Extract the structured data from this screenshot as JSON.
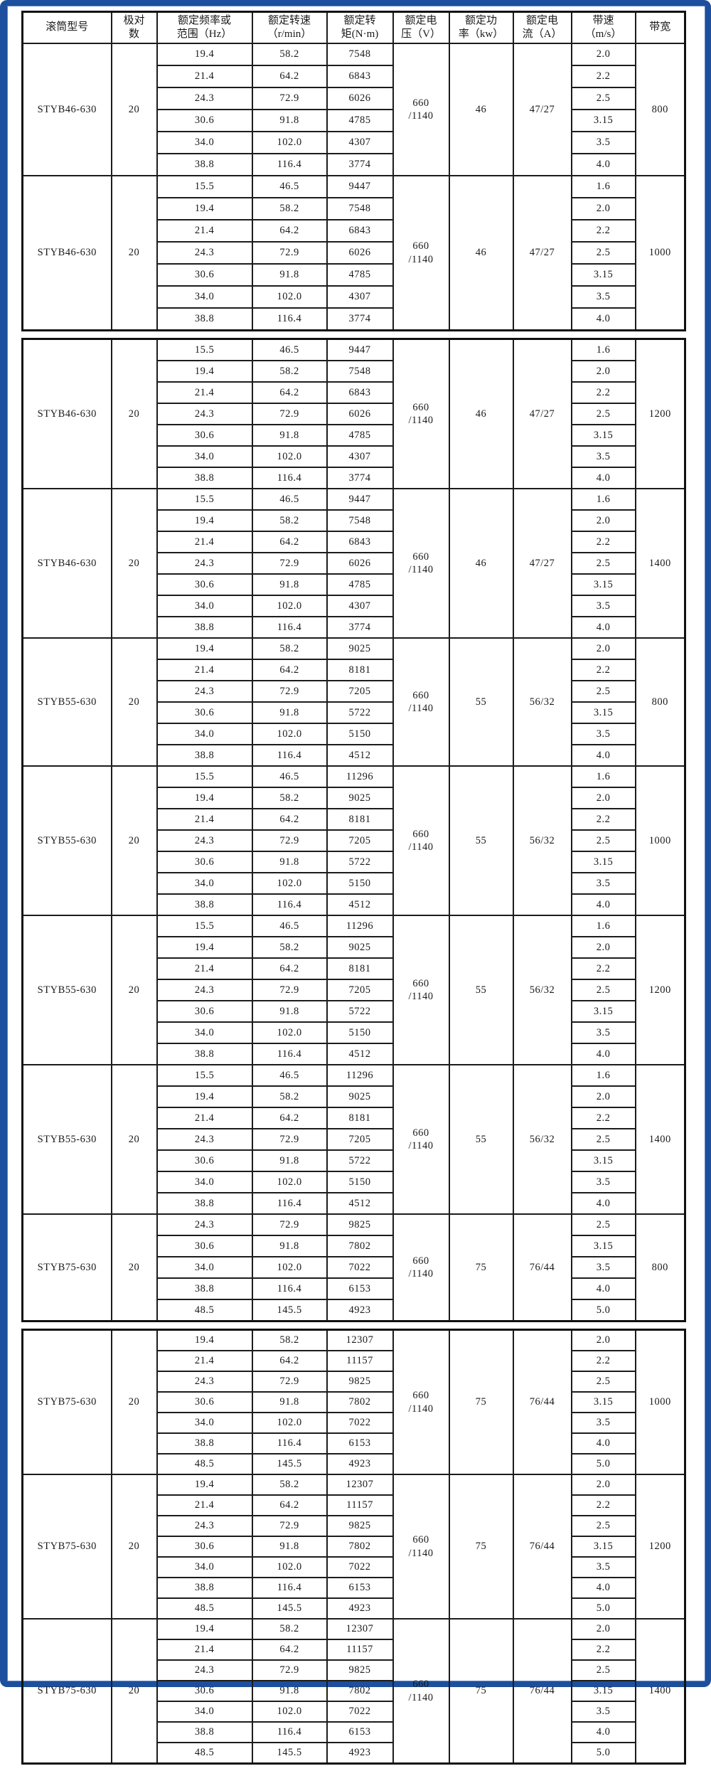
{
  "frame": {
    "color": "#1d4f9e"
  },
  "header": {
    "model": "滚筒型号",
    "poles": "极对\n数",
    "freq": "额定频率或\n范围（Hz）",
    "rpm": "额定转速\n（r/min）",
    "torque": "额定转\n矩(N·m)",
    "voltage": "额定电\n压（V）",
    "power": "额定功\n率（kw）",
    "current": "额定电\n流（A）",
    "belt_speed": "带速\n（m/s）",
    "belt_width": "带宽"
  },
  "sections": [
    {
      "has_header": true,
      "blocks": [
        {
          "model": "STYB46-630",
          "poles": "20",
          "voltage": "660\n/1140",
          "power": "46",
          "current": "47/27",
          "belt_width": "800",
          "rows": [
            {
              "freq": "19.4",
              "rpm": "58.2",
              "torque": "7548",
              "belt_speed": "2.0"
            },
            {
              "freq": "21.4",
              "rpm": "64.2",
              "torque": "6843",
              "belt_speed": "2.2"
            },
            {
              "freq": "24.3",
              "rpm": "72.9",
              "torque": "6026",
              "belt_speed": "2.5"
            },
            {
              "freq": "30.6",
              "rpm": "91.8",
              "torque": "4785",
              "belt_speed": "3.15"
            },
            {
              "freq": "34.0",
              "rpm": "102.0",
              "torque": "4307",
              "belt_speed": "3.5"
            },
            {
              "freq": "38.8",
              "rpm": "116.4",
              "torque": "3774",
              "belt_speed": "4.0"
            }
          ]
        },
        {
          "model": "STYB46-630",
          "poles": "20",
          "voltage": "660\n/1140",
          "power": "46",
          "current": "47/27",
          "belt_width": "1000",
          "rows": [
            {
              "freq": "15.5",
              "rpm": "46.5",
              "torque": "9447",
              "belt_speed": "1.6"
            },
            {
              "freq": "19.4",
              "rpm": "58.2",
              "torque": "7548",
              "belt_speed": "2.0"
            },
            {
              "freq": "21.4",
              "rpm": "64.2",
              "torque": "6843",
              "belt_speed": "2.2"
            },
            {
              "freq": "24.3",
              "rpm": "72.9",
              "torque": "6026",
              "belt_speed": "2.5"
            },
            {
              "freq": "30.6",
              "rpm": "91.8",
              "torque": "4785",
              "belt_speed": "3.15"
            },
            {
              "freq": "34.0",
              "rpm": "102.0",
              "torque": "4307",
              "belt_speed": "3.5"
            },
            {
              "freq": "38.8",
              "rpm": "116.4",
              "torque": "3774",
              "belt_speed": "4.0"
            }
          ]
        }
      ]
    },
    {
      "has_header": false,
      "blocks": [
        {
          "model": "STYB46-630",
          "poles": "20",
          "voltage": "660\n/1140",
          "power": "46",
          "current": "47/27",
          "belt_width": "1200",
          "rows": [
            {
              "freq": "15.5",
              "rpm": "46.5",
              "torque": "9447",
              "belt_speed": "1.6"
            },
            {
              "freq": "19.4",
              "rpm": "58.2",
              "torque": "7548",
              "belt_speed": "2.0"
            },
            {
              "freq": "21.4",
              "rpm": "64.2",
              "torque": "6843",
              "belt_speed": "2.2"
            },
            {
              "freq": "24.3",
              "rpm": "72.9",
              "torque": "6026",
              "belt_speed": "2.5"
            },
            {
              "freq": "30.6",
              "rpm": "91.8",
              "torque": "4785",
              "belt_speed": "3.15"
            },
            {
              "freq": "34.0",
              "rpm": "102.0",
              "torque": "4307",
              "belt_speed": "3.5"
            },
            {
              "freq": "38.8",
              "rpm": "116.4",
              "torque": "3774",
              "belt_speed": "4.0"
            }
          ]
        },
        {
          "model": "STYB46-630",
          "poles": "20",
          "voltage": "660\n/1140",
          "power": "46",
          "current": "47/27",
          "belt_width": "1400",
          "rows": [
            {
              "freq": "15.5",
              "rpm": "46.5",
              "torque": "9447",
              "belt_speed": "1.6"
            },
            {
              "freq": "19.4",
              "rpm": "58.2",
              "torque": "7548",
              "belt_speed": "2.0"
            },
            {
              "freq": "21.4",
              "rpm": "64.2",
              "torque": "6843",
              "belt_speed": "2.2"
            },
            {
              "freq": "24.3",
              "rpm": "72.9",
              "torque": "6026",
              "belt_speed": "2.5"
            },
            {
              "freq": "30.6",
              "rpm": "91.8",
              "torque": "4785",
              "belt_speed": "3.15"
            },
            {
              "freq": "34.0",
              "rpm": "102.0",
              "torque": "4307",
              "belt_speed": "3.5"
            },
            {
              "freq": "38.8",
              "rpm": "116.4",
              "torque": "3774",
              "belt_speed": "4.0"
            }
          ]
        },
        {
          "model": "STYB55-630",
          "poles": "20",
          "voltage": "660\n/1140",
          "power": "55",
          "current": "56/32",
          "belt_width": "800",
          "rows": [
            {
              "freq": "19.4",
              "rpm": "58.2",
              "torque": "9025",
              "belt_speed": "2.0"
            },
            {
              "freq": "21.4",
              "rpm": "64.2",
              "torque": "8181",
              "belt_speed": "2.2"
            },
            {
              "freq": "24.3",
              "rpm": "72.9",
              "torque": "7205",
              "belt_speed": "2.5"
            },
            {
              "freq": "30.6",
              "rpm": "91.8",
              "torque": "5722",
              "belt_speed": "3.15"
            },
            {
              "freq": "34.0",
              "rpm": "102.0",
              "torque": "5150",
              "belt_speed": "3.5"
            },
            {
              "freq": "38.8",
              "rpm": "116.4",
              "torque": "4512",
              "belt_speed": "4.0"
            }
          ]
        },
        {
          "model": "STYB55-630",
          "poles": "20",
          "voltage": "660\n/1140",
          "power": "55",
          "current": "56/32",
          "belt_width": "1000",
          "rows": [
            {
              "freq": "15.5",
              "rpm": "46.5",
              "torque": "11296",
              "belt_speed": "1.6"
            },
            {
              "freq": "19.4",
              "rpm": "58.2",
              "torque": "9025",
              "belt_speed": "2.0"
            },
            {
              "freq": "21.4",
              "rpm": "64.2",
              "torque": "8181",
              "belt_speed": "2.2"
            },
            {
              "freq": "24.3",
              "rpm": "72.9",
              "torque": "7205",
              "belt_speed": "2.5"
            },
            {
              "freq": "30.6",
              "rpm": "91.8",
              "torque": "5722",
              "belt_speed": "3.15"
            },
            {
              "freq": "34.0",
              "rpm": "102.0",
              "torque": "5150",
              "belt_speed": "3.5"
            },
            {
              "freq": "38.8",
              "rpm": "116.4",
              "torque": "4512",
              "belt_speed": "4.0"
            }
          ]
        },
        {
          "model": "STYB55-630",
          "poles": "20",
          "voltage": "660\n/1140",
          "power": "55",
          "current": "56/32",
          "belt_width": "1200",
          "rows": [
            {
              "freq": "15.5",
              "rpm": "46.5",
              "torque": "11296",
              "belt_speed": "1.6"
            },
            {
              "freq": "19.4",
              "rpm": "58.2",
              "torque": "9025",
              "belt_speed": "2.0"
            },
            {
              "freq": "21.4",
              "rpm": "64.2",
              "torque": "8181",
              "belt_speed": "2.2"
            },
            {
              "freq": "24.3",
              "rpm": "72.9",
              "torque": "7205",
              "belt_speed": "2.5"
            },
            {
              "freq": "30.6",
              "rpm": "91.8",
              "torque": "5722",
              "belt_speed": "3.15"
            },
            {
              "freq": "34.0",
              "rpm": "102.0",
              "torque": "5150",
              "belt_speed": "3.5"
            },
            {
              "freq": "38.8",
              "rpm": "116.4",
              "torque": "4512",
              "belt_speed": "4.0"
            }
          ]
        },
        {
          "model": "STYB55-630",
          "poles": "20",
          "voltage": "660\n/1140",
          "power": "55",
          "current": "56/32",
          "belt_width": "1400",
          "rows": [
            {
              "freq": "15.5",
              "rpm": "46.5",
              "torque": "11296",
              "belt_speed": "1.6"
            },
            {
              "freq": "19.4",
              "rpm": "58.2",
              "torque": "9025",
              "belt_speed": "2.0"
            },
            {
              "freq": "21.4",
              "rpm": "64.2",
              "torque": "8181",
              "belt_speed": "2.2"
            },
            {
              "freq": "24.3",
              "rpm": "72.9",
              "torque": "7205",
              "belt_speed": "2.5"
            },
            {
              "freq": "30.6",
              "rpm": "91.8",
              "torque": "5722",
              "belt_speed": "3.15"
            },
            {
              "freq": "34.0",
              "rpm": "102.0",
              "torque": "5150",
              "belt_speed": "3.5"
            },
            {
              "freq": "38.8",
              "rpm": "116.4",
              "torque": "4512",
              "belt_speed": "4.0"
            }
          ]
        },
        {
          "model": "STYB75-630",
          "poles": "20",
          "voltage": "660\n/1140",
          "power": "75",
          "current": "76/44",
          "belt_width": "800",
          "rows": [
            {
              "freq": "24.3",
              "rpm": "72.9",
              "torque": "9825",
              "belt_speed": "2.5"
            },
            {
              "freq": "30.6",
              "rpm": "91.8",
              "torque": "7802",
              "belt_speed": "3.15"
            },
            {
              "freq": "34.0",
              "rpm": "102.0",
              "torque": "7022",
              "belt_speed": "3.5"
            },
            {
              "freq": "38.8",
              "rpm": "116.4",
              "torque": "6153",
              "belt_speed": "4.0"
            },
            {
              "freq": "48.5",
              "rpm": "145.5",
              "torque": "4923",
              "belt_speed": "5.0"
            }
          ]
        }
      ]
    },
    {
      "has_header": false,
      "blocks": [
        {
          "model": "STYB75-630",
          "poles": "20",
          "voltage": "660\n/1140",
          "power": "75",
          "current": "76/44",
          "belt_width": "1000",
          "rows": [
            {
              "freq": "19.4",
              "rpm": "58.2",
              "torque": "12307",
              "belt_speed": "2.0"
            },
            {
              "freq": "21.4",
              "rpm": "64.2",
              "torque": "11157",
              "belt_speed": "2.2"
            },
            {
              "freq": "24.3",
              "rpm": "72.9",
              "torque": "9825",
              "belt_speed": "2.5"
            },
            {
              "freq": "30.6",
              "rpm": "91.8",
              "torque": "7802",
              "belt_speed": "3.15"
            },
            {
              "freq": "34.0",
              "rpm": "102.0",
              "torque": "7022",
              "belt_speed": "3.5"
            },
            {
              "freq": "38.8",
              "rpm": "116.4",
              "torque": "6153",
              "belt_speed": "4.0"
            },
            {
              "freq": "48.5",
              "rpm": "145.5",
              "torque": "4923",
              "belt_speed": "5.0"
            }
          ]
        },
        {
          "model": "STYB75-630",
          "poles": "20",
          "voltage": "660\n/1140",
          "power": "75",
          "current": "76/44",
          "belt_width": "1200",
          "rows": [
            {
              "freq": "19.4",
              "rpm": "58.2",
              "torque": "12307",
              "belt_speed": "2.0"
            },
            {
              "freq": "21.4",
              "rpm": "64.2",
              "torque": "11157",
              "belt_speed": "2.2"
            },
            {
              "freq": "24.3",
              "rpm": "72.9",
              "torque": "9825",
              "belt_speed": "2.5"
            },
            {
              "freq": "30.6",
              "rpm": "91.8",
              "torque": "7802",
              "belt_speed": "3.15"
            },
            {
              "freq": "34.0",
              "rpm": "102.0",
              "torque": "7022",
              "belt_speed": "3.5"
            },
            {
              "freq": "38.8",
              "rpm": "116.4",
              "torque": "6153",
              "belt_speed": "4.0"
            },
            {
              "freq": "48.5",
              "rpm": "145.5",
              "torque": "4923",
              "belt_speed": "5.0"
            }
          ]
        },
        {
          "model": "STYB75-630",
          "poles": "20",
          "voltage": "660\n/1140",
          "power": "75",
          "current": "76/44",
          "belt_width": "1400",
          "rows": [
            {
              "freq": "19.4",
              "rpm": "58.2",
              "torque": "12307",
              "belt_speed": "2.0"
            },
            {
              "freq": "21.4",
              "rpm": "64.2",
              "torque": "11157",
              "belt_speed": "2.2"
            },
            {
              "freq": "24.3",
              "rpm": "72.9",
              "torque": "9825",
              "belt_speed": "2.5"
            },
            {
              "freq": "30.6",
              "rpm": "91.8",
              "torque": "7802",
              "belt_speed": "3.15"
            },
            {
              "freq": "34.0",
              "rpm": "102.0",
              "torque": "7022",
              "belt_speed": "3.5"
            },
            {
              "freq": "38.8",
              "rpm": "116.4",
              "torque": "6153",
              "belt_speed": "4.0"
            },
            {
              "freq": "48.5",
              "rpm": "145.5",
              "torque": "4923",
              "belt_speed": "5.0"
            }
          ]
        }
      ]
    }
  ]
}
